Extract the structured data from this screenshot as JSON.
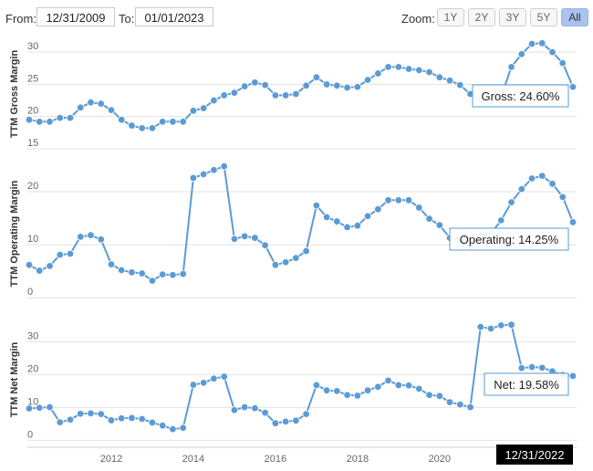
{
  "toolbar": {
    "from_label": "From:",
    "from_value": "12/31/2009",
    "to_label": "To:",
    "to_value": "01/01/2023",
    "zoom_label": "Zoom:",
    "zoom_buttons": [
      "1Y",
      "2Y",
      "3Y",
      "5Y",
      "All"
    ],
    "active_zoom": "All"
  },
  "colors": {
    "line": "#5b9bd5",
    "point": "#5b9bd5",
    "grid": "#e3e3e3",
    "axis_text": "#666666"
  },
  "crosshair_label": "12/31/2022",
  "chart_data": [
    {
      "type": "line",
      "ylabel": "TTM Gross Margin",
      "yticks": [
        15,
        20,
        25,
        30
      ],
      "ylim": [
        14,
        33
      ],
      "tooltip": "Gross: 24.60%",
      "series": [
        {
          "values": [
            19.5,
            19.2,
            19.2,
            19.8,
            19.8,
            21.4,
            22.2,
            22.0,
            21.0,
            19.5,
            18.6,
            18.2,
            18.2,
            19.2,
            19.2,
            19.2,
            20.9,
            21.3,
            22.5,
            23.3,
            23.7,
            24.7,
            25.3,
            24.9,
            23.3,
            23.3,
            23.5,
            24.8,
            26.1,
            25.0,
            24.8,
            24.5,
            24.6,
            25.7,
            26.7,
            27.7,
            27.7,
            27.4,
            27.2,
            26.9,
            26.1,
            25.6,
            24.9,
            23.5,
            22.5,
            22.4,
            23.0,
            27.7,
            29.7,
            31.3,
            31.4,
            30.0,
            28.3,
            24.6
          ]
        }
      ]
    },
    {
      "type": "line",
      "ylabel": "TTM Operating Margin",
      "yticks": [
        0,
        10,
        20
      ],
      "ylim": [
        -1,
        25
      ],
      "tooltip": "Operating: 14.25%",
      "series": [
        {
          "values": [
            6.2,
            5.1,
            6.0,
            8.1,
            8.3,
            11.5,
            11.8,
            11.0,
            6.3,
            5.2,
            4.8,
            4.6,
            3.2,
            4.4,
            4.3,
            4.5,
            22.6,
            23.3,
            24.1,
            24.8,
            11.1,
            11.6,
            11.3,
            9.9,
            6.2,
            6.7,
            7.5,
            8.8,
            17.4,
            15.2,
            14.4,
            13.3,
            13.6,
            15.4,
            16.7,
            18.4,
            18.4,
            18.4,
            17.0,
            14.9,
            13.7,
            11.3,
            10.5,
            9.6,
            11.6,
            12.1,
            14.6,
            18.0,
            20.5,
            22.5,
            23.0,
            21.5,
            19.0,
            14.25
          ]
        }
      ]
    },
    {
      "type": "line",
      "ylabel": "TTM Net Margin",
      "yticks": [
        0,
        10,
        20,
        30
      ],
      "ylim": [
        -1,
        39
      ],
      "x_tick_labels": [
        "2012",
        "2014",
        "2016",
        "2018",
        "2020"
      ],
      "tooltip": "Net: 19.58%",
      "series": [
        {
          "values": [
            9.7,
            9.9,
            10.1,
            5.5,
            6.3,
            8.1,
            8.2,
            8.0,
            6.1,
            6.7,
            6.8,
            6.5,
            5.4,
            4.5,
            3.4,
            3.8,
            16.9,
            17.5,
            18.8,
            19.4,
            9.2,
            10.1,
            9.8,
            8.4,
            5.2,
            5.7,
            6.0,
            8.0,
            16.8,
            15.2,
            15.0,
            13.8,
            13.6,
            15.2,
            16.3,
            18.2,
            16.8,
            16.7,
            15.7,
            13.8,
            13.5,
            11.6,
            10.9,
            10.1,
            34.5,
            34.0,
            35.0,
            35.2,
            22.0,
            22.3,
            22.1,
            21.0,
            19.9,
            19.58
          ]
        }
      ]
    }
  ]
}
